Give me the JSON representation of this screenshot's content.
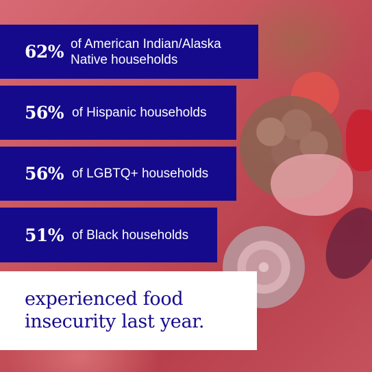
{
  "stats": [
    {
      "percent": "62%",
      "label_line1": "of American Indian/Alaska",
      "label_line2": "Native households"
    },
    {
      "percent": "56%",
      "label": "of Hispanic households"
    },
    {
      "percent": "56%",
      "label": "of LGBTQ+ households"
    },
    {
      "percent": "51%",
      "label": "of Black households"
    }
  ],
  "footer": {
    "line1": "experienced food",
    "line2": "insecurity last year."
  },
  "colors": {
    "bar_navy": "#150a8c",
    "bar_text": "#ffffff",
    "footer_bg": "#ffffff",
    "footer_text": "#150a8c",
    "background_tint": "#c9565f"
  }
}
